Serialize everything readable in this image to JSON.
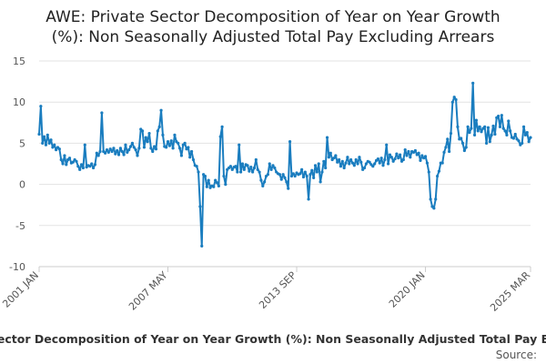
{
  "chart_data": {
    "type": "line",
    "title": [
      "AWE: Private Sector Decomposition of Year on Year Growth",
      "(%): Non Seasonally Adjusted Total Pay Excluding Arrears"
    ],
    "legend_text": "ector Decomposition of Year on Year Growth (%): Non Seasonally Adjusted Total Pay E",
    "source": "Source:",
    "categories": [
      "2001 JAN",
      null,
      null,
      null,
      null,
      null,
      null,
      null,
      null,
      null,
      null,
      null,
      null,
      null,
      null,
      null,
      null,
      null,
      null,
      null,
      null,
      null,
      null,
      null,
      null,
      null,
      null,
      null,
      null,
      null,
      null,
      null,
      null,
      null,
      null,
      null,
      null,
      null,
      null,
      null,
      null,
      null,
      null,
      null,
      null,
      null,
      null,
      null,
      null,
      null,
      null,
      null,
      null,
      null,
      null,
      null,
      null,
      null,
      null,
      null,
      null,
      null,
      null,
      null,
      null,
      null,
      null,
      null,
      null,
      null,
      null,
      null,
      null,
      null,
      null,
      null,
      "2007 MAY",
      null,
      null,
      null,
      null,
      null,
      null,
      null,
      null,
      null,
      null,
      null,
      null,
      null,
      null,
      null,
      null,
      null,
      null,
      null,
      null,
      null,
      null,
      null,
      null,
      null,
      null,
      null,
      null,
      null,
      null,
      null,
      null,
      null,
      null,
      null,
      null,
      null,
      null,
      null,
      null,
      null,
      null,
      null,
      null,
      null,
      null,
      null,
      null,
      null,
      null,
      null,
      null,
      null,
      null,
      null,
      null,
      null,
      null,
      null,
      null,
      null,
      null,
      null,
      null,
      null,
      null,
      null,
      null,
      null,
      null,
      null,
      null,
      null,
      null,
      null,
      "2013 SEP",
      null,
      null,
      null,
      null,
      null,
      null,
      null,
      null,
      null,
      null,
      null,
      null,
      null,
      null,
      null,
      null,
      null,
      null,
      null,
      null,
      null,
      null,
      null,
      null,
      null,
      null,
      null,
      null,
      null,
      null,
      null,
      null,
      null,
      null,
      null,
      null,
      null,
      null,
      null,
      null,
      null,
      null,
      null,
      null,
      null,
      null,
      null,
      null,
      null,
      null,
      null,
      null,
      null,
      null,
      null,
      null,
      null,
      null,
      null,
      null,
      null,
      null,
      null,
      null,
      null,
      null,
      null,
      null,
      null,
      null,
      null,
      null,
      null,
      null,
      null,
      "2020 JAN",
      null,
      null,
      null,
      null,
      null,
      null,
      null,
      null,
      null,
      null,
      null,
      null,
      null,
      null,
      null,
      null,
      null,
      null,
      null,
      null,
      null,
      null,
      null,
      null,
      null,
      null,
      null,
      null,
      null,
      null,
      null,
      null,
      null,
      null,
      null,
      null,
      null,
      null,
      null,
      null,
      null,
      null,
      null,
      null,
      null,
      null,
      null,
      null,
      null,
      null,
      null,
      null,
      null,
      null,
      null,
      null,
      null,
      null,
      null,
      null,
      null,
      "2025 MAR"
    ],
    "series": [
      {
        "color": "#1a7dbf",
        "values": [
          6.1,
          9.5,
          5.0,
          5.8,
          4.8,
          6.0,
          5.0,
          5.4,
          4.5,
          4.8,
          4.2,
          4.5,
          4.3,
          3.0,
          2.5,
          3.5,
          2.4,
          3.0,
          3.2,
          2.6,
          2.7,
          3.0,
          2.8,
          2.2,
          1.8,
          2.4,
          2.0,
          4.8,
          2.1,
          2.3,
          2.2,
          2.5,
          2.0,
          2.4,
          3.8,
          3.5,
          4.0,
          8.7,
          4.0,
          3.8,
          4.2,
          3.9,
          4.3,
          4.0,
          4.4,
          3.7,
          4.1,
          3.6,
          4.4,
          4.0,
          3.6,
          4.8,
          3.9,
          4.2,
          4.6,
          5.0,
          4.5,
          4.2,
          3.5,
          4.4,
          6.7,
          6.5,
          4.5,
          5.7,
          5.2,
          6.2,
          4.4,
          4.0,
          4.6,
          4.3,
          6.5,
          7.0,
          9.0,
          6.0,
          4.6,
          4.5,
          5.2,
          4.7,
          5.3,
          4.4,
          6.0,
          5.2,
          5.0,
          4.4,
          3.5,
          4.8,
          5.0,
          4.3,
          4.5,
          3.3,
          4.0,
          3.0,
          2.3,
          2.2,
          1.5,
          -2.7,
          -7.5,
          1.2,
          1.0,
          -0.3,
          0.5,
          -0.4,
          -0.2,
          -0.3,
          0.5,
          0.2,
          -0.2,
          5.8,
          7.0,
          1.0,
          0.0,
          1.8,
          2.0,
          2.2,
          1.8,
          2.1,
          2.2,
          1.5,
          4.8,
          1.5,
          2.5,
          1.8,
          2.4,
          2.3,
          1.6,
          2.1,
          1.5,
          2.0,
          3.0,
          1.8,
          1.5,
          0.5,
          -0.2,
          0.3,
          1.0,
          1.2,
          2.5,
          1.8,
          2.3,
          2.0,
          1.5,
          1.3,
          1.2,
          0.6,
          1.2,
          0.8,
          0.3,
          -0.5,
          5.2,
          1.0,
          1.3,
          1.0,
          1.4,
          1.2,
          1.3,
          1.8,
          0.9,
          1.5,
          1.0,
          -1.8,
          1.2,
          1.7,
          0.8,
          2.3,
          1.5,
          2.5,
          0.3,
          1.5,
          2.8,
          2.0,
          5.7,
          3.3,
          3.8,
          3.0,
          3.2,
          3.5,
          2.7,
          3.0,
          2.2,
          2.8,
          2.0,
          2.6,
          3.3,
          2.5,
          3.0,
          2.6,
          2.3,
          3.0,
          2.5,
          3.3,
          2.7,
          1.8,
          2.0,
          2.5,
          2.8,
          2.7,
          2.4,
          2.2,
          2.5,
          2.9,
          3.1,
          2.6,
          3.2,
          2.3,
          3.0,
          4.8,
          2.5,
          3.6,
          3.3,
          2.8,
          3.1,
          3.7,
          3.2,
          3.6,
          2.8,
          3.0,
          4.2,
          3.5,
          4.0,
          3.3,
          4.0,
          3.9,
          4.1,
          3.6,
          3.8,
          2.9,
          3.5,
          3.2,
          3.4,
          2.6,
          1.5,
          -1.8,
          -2.7,
          -2.9,
          -1.8,
          1.0,
          1.6,
          2.6,
          2.6,
          3.9,
          4.5,
          5.5,
          4.0,
          6.2,
          10.0,
          10.6,
          10.3,
          7.0,
          5.5,
          5.6,
          5.0,
          4.1,
          4.5,
          7.0,
          6.3,
          6.8,
          12.3,
          6.0,
          7.8,
          6.5,
          7.0,
          6.4,
          6.8,
          7.0,
          5.0,
          6.9,
          5.2,
          6.0,
          7.1,
          6.1,
          8.1,
          8.3,
          7.0,
          8.4,
          6.8,
          6.5,
          6.0,
          7.7,
          6.5,
          5.7,
          5.6,
          6.1,
          5.5,
          5.3,
          4.8,
          5.0,
          7.0,
          6.0,
          6.3,
          5.2,
          5.7
        ]
      }
    ],
    "ylim": [
      -10,
      15
    ],
    "yticks": [
      -10,
      -5,
      0,
      5,
      10,
      15
    ],
    "grid": true
  }
}
